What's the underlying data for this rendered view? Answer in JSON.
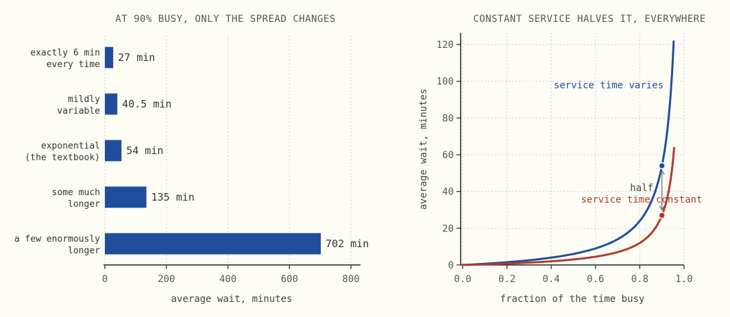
{
  "chart_data": [
    {
      "type": "bar",
      "orientation": "horizontal",
      "title": "AT 90% BUSY, ONLY THE SPREAD CHANGES",
      "xlabel": "average wait, minutes",
      "ylabel": "",
      "xlim": [
        0,
        830
      ],
      "xticks": [
        0,
        200,
        400,
        600,
        800
      ],
      "categories": [
        [
          "exactly 6 min",
          "every time"
        ],
        [
          "mildly",
          "variable"
        ],
        [
          "exponential",
          "(the textbook)"
        ],
        [
          "some much",
          "longer"
        ],
        [
          "a few enormously",
          "longer"
        ]
      ],
      "values": [
        27,
        40.5,
        54,
        135,
        702
      ],
      "value_labels": [
        "27 min",
        "40.5 min",
        "54 min",
        "135 min",
        "702 min"
      ],
      "grid": "vertical",
      "bar_color": "#1f4e9c"
    },
    {
      "type": "line",
      "title": "CONSTANT SERVICE HALVES IT, EVERYWHERE",
      "xlabel": "fraction of the time busy",
      "ylabel": "average wait, minutes",
      "xlim": [
        0,
        1.0
      ],
      "ylim": [
        0,
        126
      ],
      "xticks": [
        "0.0",
        "0.2",
        "0.4",
        "0.6",
        "0.8",
        "1.0"
      ],
      "yticks": [
        0,
        20,
        40,
        60,
        80,
        100,
        120
      ],
      "grid": "both",
      "series": [
        {
          "name": "service time varies",
          "color": "#1f4e9c",
          "formula": "6*x/(1-x)",
          "x_range": [
            0,
            0.953
          ]
        },
        {
          "name": "service time constant",
          "color": "#b03a2e",
          "formula": "3*x/(1-x)",
          "x_range": [
            0,
            0.955
          ]
        }
      ],
      "markers": [
        {
          "x": 0.9,
          "y": 54,
          "color": "#1f4e9c"
        },
        {
          "x": 0.9,
          "y": 27,
          "color": "#b03a2e"
        }
      ],
      "annotation": {
        "text": "half",
        "from": [
          0.9,
          54
        ],
        "to": [
          0.9,
          27
        ]
      }
    }
  ]
}
